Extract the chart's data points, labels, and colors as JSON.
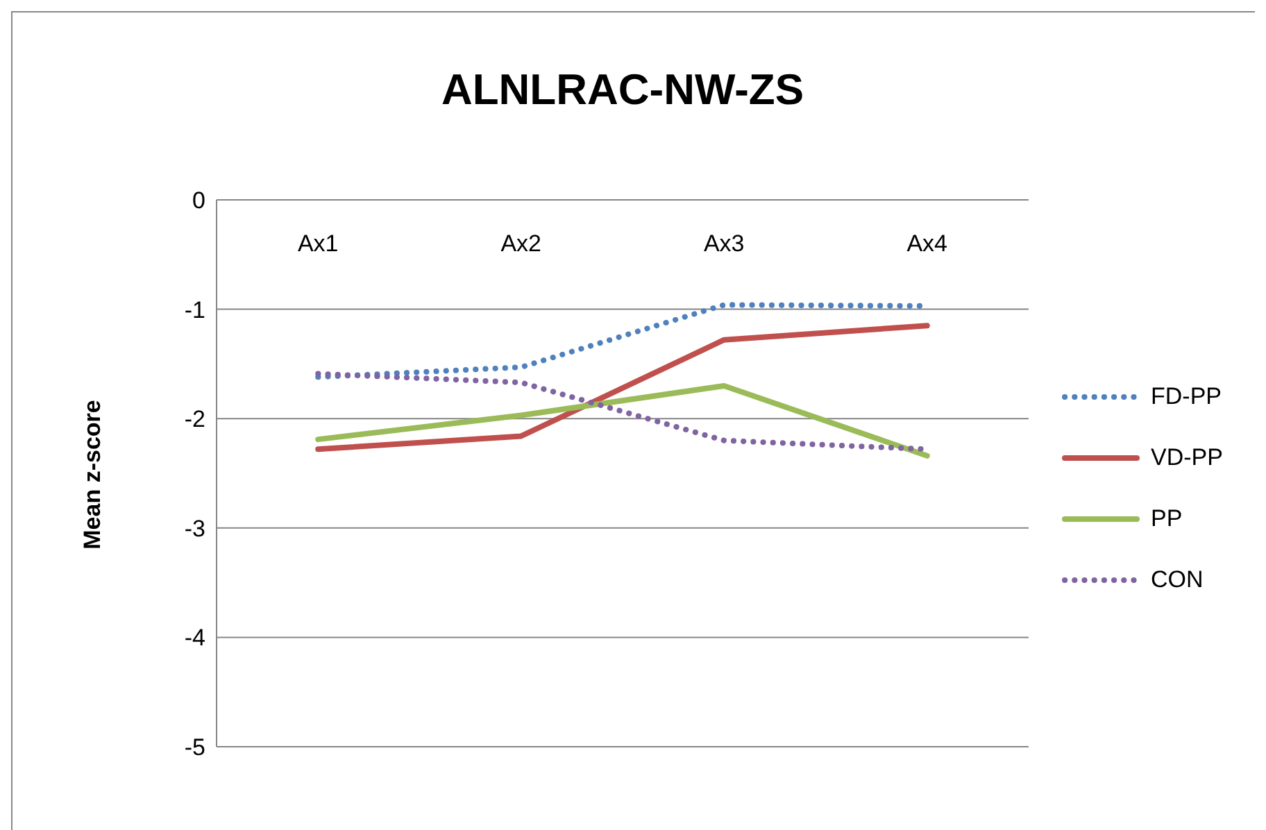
{
  "chart_data": {
    "type": "line",
    "title": "ALNLRAC-NW-ZS",
    "ylabel": "Mean z-score",
    "categories": [
      "Ax1",
      "Ax2",
      "Ax3",
      "Ax4"
    ],
    "ylim": [
      -5,
      0
    ],
    "yticks": [
      0,
      -1,
      -2,
      -3,
      -4,
      -5
    ],
    "grid": "y",
    "legend": "right",
    "series": [
      {
        "name": "FD-PP",
        "color": "#4f81bd",
        "line_style": "dotted",
        "values": [
          -1.62,
          -1.53,
          -0.96,
          -0.97
        ]
      },
      {
        "name": "VD-PP",
        "color": "#c0504d",
        "line_style": "solid",
        "values": [
          -2.28,
          -2.16,
          -1.28,
          -1.15
        ]
      },
      {
        "name": "PP",
        "color": "#9bbb59",
        "line_style": "solid",
        "values": [
          -2.19,
          -1.97,
          -1.7,
          -2.34
        ]
      },
      {
        "name": "CON",
        "color": "#8064a2",
        "line_style": "dotted",
        "values": [
          -1.59,
          -1.67,
          -2.2,
          -2.28
        ]
      }
    ]
  }
}
